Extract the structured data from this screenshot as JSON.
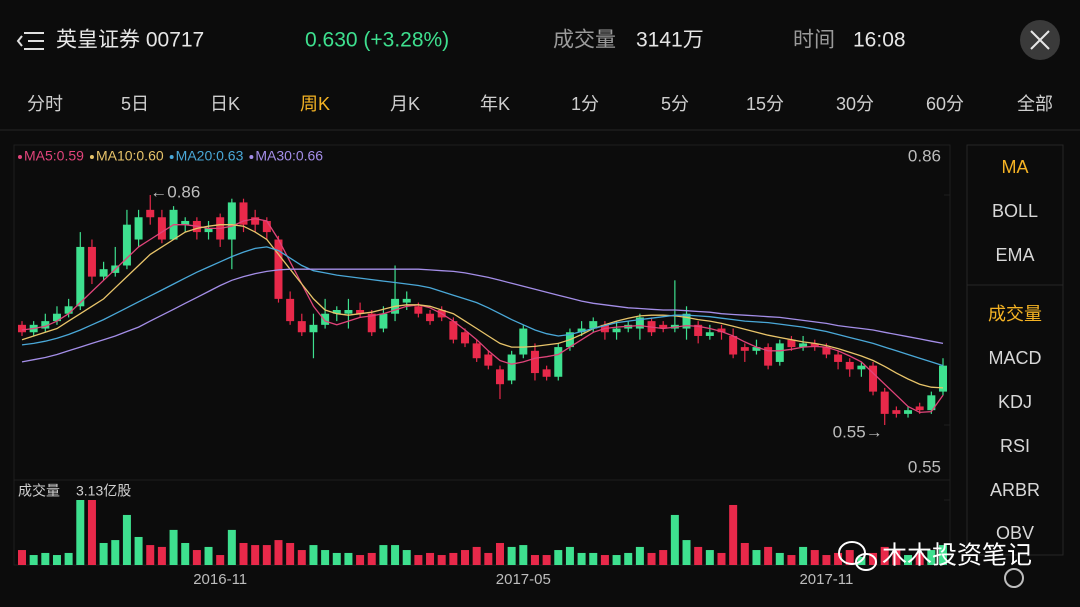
{
  "header": {
    "name": "英皇证券 00717",
    "price": "0.630 (+3.28%)",
    "volume_label": "成交量",
    "volume": "3141万",
    "time_label": "时间",
    "time": "16:08"
  },
  "tabs": [
    "分时",
    "5日",
    "日K",
    "周K",
    "月K",
    "年K",
    "1分",
    "5分",
    "15分",
    "30分",
    "60分",
    "全部"
  ],
  "active_tab": 3,
  "sidebar": [
    [
      "MA",
      "BOLL",
      "EMA"
    ],
    [
      "成交量",
      "MACD",
      "KDJ",
      "RSI",
      "ARBR",
      "OBV"
    ]
  ],
  "active_color": "#f5b324",
  "watermark": "木木投资笔记",
  "chart_data": {
    "type": "candlestick",
    "categories": [
      null,
      null,
      null,
      null,
      null,
      null,
      null,
      null,
      null,
      null,
      null,
      null,
      null,
      null,
      null,
      null,
      null,
      "2016-11",
      null,
      null,
      null,
      null,
      null,
      null,
      null,
      null,
      null,
      null,
      null,
      null,
      null,
      null,
      null,
      null,
      null,
      null,
      null,
      null,
      null,
      null,
      null,
      null,
      null,
      "2017-05",
      null,
      null,
      null,
      null,
      null,
      null,
      null,
      null,
      null,
      null,
      null,
      null,
      null,
      null,
      null,
      null,
      null,
      null,
      null,
      null,
      null,
      null,
      null,
      null,
      null,
      "2017-11",
      null,
      null,
      null,
      null,
      null,
      null,
      null,
      null,
      null,
      null
    ],
    "open": [
      0.685,
      0.675,
      0.68,
      0.69,
      0.7,
      0.71,
      0.79,
      0.75,
      0.755,
      0.765,
      0.8,
      0.84,
      0.83,
      0.8,
      0.82,
      0.825,
      0.81,
      0.83,
      0.8,
      0.85,
      0.83,
      0.825,
      0.8,
      0.72,
      0.69,
      0.675,
      0.685,
      0.7,
      0.7,
      0.705,
      0.7,
      0.68,
      0.7,
      0.715,
      0.71,
      0.7,
      0.705,
      0.69,
      0.675,
      0.66,
      0.645,
      0.625,
      0.61,
      0.645,
      0.65,
      0.625,
      0.615,
      0.655,
      0.675,
      0.68,
      0.685,
      0.675,
      0.68,
      0.68,
      0.69,
      0.685,
      0.68,
      0.68,
      0.685,
      0.67,
      0.68,
      0.67,
      0.655,
      0.65,
      0.655,
      0.635,
      0.665,
      0.655,
      0.66,
      0.655,
      0.645,
      0.635,
      0.625,
      0.63,
      0.595,
      0.57,
      0.565,
      0.575,
      0.57,
      0.595
    ],
    "high": [
      0.69,
      0.69,
      0.7,
      0.71,
      0.72,
      0.81,
      0.8,
      0.77,
      0.79,
      0.84,
      0.84,
      0.86,
      0.84,
      0.845,
      0.83,
      0.83,
      0.825,
      0.835,
      0.855,
      0.855,
      0.84,
      0.83,
      0.805,
      0.73,
      0.7,
      0.7,
      0.72,
      0.71,
      0.72,
      0.715,
      0.705,
      0.71,
      0.765,
      0.73,
      0.715,
      0.705,
      0.71,
      0.695,
      0.68,
      0.665,
      0.65,
      0.63,
      0.65,
      0.685,
      0.66,
      0.63,
      0.66,
      0.68,
      0.69,
      0.695,
      0.69,
      0.69,
      0.69,
      0.7,
      0.695,
      0.69,
      0.745,
      0.71,
      0.69,
      0.685,
      0.685,
      0.68,
      0.66,
      0.665,
      0.66,
      0.665,
      0.67,
      0.67,
      0.665,
      0.66,
      0.65,
      0.64,
      0.635,
      0.635,
      0.6,
      0.575,
      0.575,
      0.58,
      0.595,
      0.64
    ],
    "low": [
      0.67,
      0.67,
      0.675,
      0.685,
      0.695,
      0.705,
      0.74,
      0.745,
      0.75,
      0.76,
      0.79,
      0.82,
      0.795,
      0.8,
      0.81,
      0.8,
      0.8,
      0.79,
      0.76,
      0.81,
      0.81,
      0.8,
      0.715,
      0.685,
      0.67,
      0.64,
      0.68,
      0.69,
      0.68,
      0.695,
      0.67,
      0.675,
      0.69,
      0.705,
      0.695,
      0.685,
      0.69,
      0.66,
      0.655,
      0.635,
      0.625,
      0.585,
      0.605,
      0.64,
      0.61,
      0.61,
      0.61,
      0.65,
      0.67,
      0.675,
      0.665,
      0.665,
      0.675,
      0.665,
      0.67,
      0.675,
      0.675,
      0.665,
      0.66,
      0.665,
      0.665,
      0.64,
      0.635,
      0.645,
      0.625,
      0.63,
      0.65,
      0.65,
      0.65,
      0.64,
      0.625,
      0.615,
      0.615,
      0.59,
      0.55,
      0.56,
      0.56,
      0.565,
      0.565,
      0.59
    ],
    "close": [
      0.675,
      0.685,
      0.69,
      0.7,
      0.71,
      0.79,
      0.75,
      0.76,
      0.765,
      0.82,
      0.83,
      0.83,
      0.8,
      0.84,
      0.825,
      0.81,
      0.815,
      0.8,
      0.85,
      0.82,
      0.82,
      0.81,
      0.72,
      0.69,
      0.675,
      0.685,
      0.7,
      0.705,
      0.705,
      0.7,
      0.675,
      0.7,
      0.72,
      0.72,
      0.7,
      0.69,
      0.695,
      0.665,
      0.66,
      0.64,
      0.63,
      0.605,
      0.645,
      0.68,
      0.62,
      0.615,
      0.655,
      0.675,
      0.68,
      0.69,
      0.675,
      0.68,
      0.685,
      0.695,
      0.675,
      0.68,
      0.685,
      0.7,
      0.67,
      0.675,
      0.675,
      0.645,
      0.65,
      0.655,
      0.63,
      0.66,
      0.655,
      0.66,
      0.655,
      0.645,
      0.635,
      0.625,
      0.63,
      0.595,
      0.565,
      0.565,
      0.57,
      0.57,
      0.59,
      0.63
    ],
    "up_color": "#3ee08f",
    "down_color": "#e8294a",
    "ylim": [
      0.55,
      0.86
    ],
    "yticks": [
      0.55,
      0.86
    ],
    "annotations": [
      "←0.86",
      "0.55→"
    ],
    "ma_series": [
      {
        "name": "MA5:0.59",
        "color": "#e0447a",
        "values": [
          0.678,
          0.68,
          0.683,
          0.69,
          0.7,
          0.715,
          0.73,
          0.745,
          0.76,
          0.775,
          0.79,
          0.8,
          0.81,
          0.82,
          0.82,
          0.818,
          0.815,
          0.815,
          0.818,
          0.825,
          0.828,
          0.825,
          0.8,
          0.77,
          0.74,
          0.71,
          0.69,
          0.685,
          0.69,
          0.695,
          0.697,
          0.7,
          0.705,
          0.71,
          0.712,
          0.708,
          0.7,
          0.69,
          0.678,
          0.665,
          0.65,
          0.637,
          0.632,
          0.635,
          0.64,
          0.642,
          0.645,
          0.655,
          0.665,
          0.675,
          0.68,
          0.682,
          0.683,
          0.684,
          0.682,
          0.68,
          0.682,
          0.684,
          0.683,
          0.68,
          0.676,
          0.67,
          0.662,
          0.655,
          0.65,
          0.65,
          0.652,
          0.655,
          0.656,
          0.655,
          0.65,
          0.643,
          0.635,
          0.62,
          0.605,
          0.59,
          0.575,
          0.567,
          0.568,
          0.59
        ]
      },
      {
        "name": "MA10:0.60",
        "color": "#e8c46a",
        "values": [
          0.665,
          0.67,
          0.675,
          0.68,
          0.69,
          0.7,
          0.71,
          0.72,
          0.735,
          0.75,
          0.765,
          0.78,
          0.79,
          0.8,
          0.81,
          0.815,
          0.818,
          0.82,
          0.82,
          0.818,
          0.81,
          0.8,
          0.78,
          0.76,
          0.74,
          0.72,
          0.705,
          0.7,
          0.698,
          0.7,
          0.702,
          0.706,
          0.71,
          0.712,
          0.712,
          0.71,
          0.705,
          0.7,
          0.69,
          0.68,
          0.67,
          0.66,
          0.655,
          0.655,
          0.656,
          0.658,
          0.66,
          0.665,
          0.672,
          0.68,
          0.685,
          0.69,
          0.694,
          0.697,
          0.698,
          0.698,
          0.697,
          0.695,
          0.692,
          0.69,
          0.687,
          0.683,
          0.679,
          0.675,
          0.671,
          0.668,
          0.665,
          0.662,
          0.66,
          0.657,
          0.653,
          0.648,
          0.643,
          0.637,
          0.629,
          0.62,
          0.612,
          0.605,
          0.601,
          0.6
        ]
      },
      {
        "name": "MA20:0.63",
        "color": "#4aa8d8",
        "values": [
          0.658,
          0.66,
          0.663,
          0.667,
          0.672,
          0.678,
          0.685,
          0.692,
          0.7,
          0.708,
          0.716,
          0.724,
          0.732,
          0.74,
          0.748,
          0.756,
          0.763,
          0.77,
          0.777,
          0.783,
          0.788,
          0.79,
          0.785,
          0.775,
          0.765,
          0.758,
          0.755,
          0.752,
          0.75,
          0.748,
          0.746,
          0.744,
          0.742,
          0.74,
          0.738,
          0.735,
          0.73,
          0.725,
          0.72,
          0.715,
          0.708,
          0.7,
          0.692,
          0.685,
          0.678,
          0.673,
          0.67,
          0.672,
          0.676,
          0.68,
          0.684,
          0.688,
          0.69,
          0.692,
          0.694,
          0.696,
          0.698,
          0.698,
          0.697,
          0.696,
          0.694,
          0.692,
          0.69,
          0.689,
          0.688,
          0.686,
          0.684,
          0.682,
          0.679,
          0.676,
          0.672,
          0.668,
          0.664,
          0.66,
          0.655,
          0.65,
          0.645,
          0.64,
          0.635,
          0.63
        ]
      },
      {
        "name": "MA30:0.66",
        "color": "#a48ee8",
        "values": [
          0.635,
          0.638,
          0.641,
          0.645,
          0.65,
          0.655,
          0.66,
          0.665,
          0.67,
          0.676,
          0.682,
          0.69,
          0.698,
          0.706,
          0.714,
          0.722,
          0.73,
          0.738,
          0.745,
          0.75,
          0.754,
          0.757,
          0.759,
          0.76,
          0.76,
          0.76,
          0.76,
          0.76,
          0.76,
          0.76,
          0.76,
          0.76,
          0.76,
          0.76,
          0.76,
          0.759,
          0.758,
          0.757,
          0.755,
          0.752,
          0.749,
          0.745,
          0.741,
          0.737,
          0.733,
          0.729,
          0.725,
          0.721,
          0.717,
          0.714,
          0.712,
          0.71,
          0.708,
          0.707,
          0.706,
          0.705,
          0.705,
          0.704,
          0.703,
          0.702,
          0.7,
          0.699,
          0.698,
          0.697,
          0.696,
          0.695,
          0.693,
          0.691,
          0.689,
          0.687,
          0.684,
          0.682,
          0.68,
          0.678,
          0.675,
          0.672,
          0.669,
          0.666,
          0.663,
          0.66
        ]
      }
    ],
    "volume": {
      "title": "成交量",
      "max": {
        "value": 3.13,
        "label": "3.13亿股"
      },
      "values": [
        0.72,
        0.48,
        0.58,
        0.48,
        0.58,
        3.13,
        3.13,
        1.06,
        1.2,
        2.41,
        1.35,
        0.96,
        0.87,
        1.69,
        1.06,
        0.72,
        0.87,
        0.48,
        1.69,
        1.06,
        0.96,
        0.96,
        1.2,
        1.06,
        0.72,
        0.96,
        0.72,
        0.58,
        0.58,
        0.48,
        0.58,
        0.96,
        0.96,
        0.72,
        0.48,
        0.58,
        0.48,
        0.58,
        0.72,
        0.87,
        0.58,
        1.06,
        0.87,
        0.96,
        0.48,
        0.48,
        0.72,
        0.87,
        0.58,
        0.58,
        0.48,
        0.48,
        0.58,
        0.87,
        0.58,
        0.72,
        2.41,
        1.2,
        0.87,
        0.72,
        0.58,
        2.89,
        1.06,
        0.72,
        0.87,
        0.58,
        0.48,
        0.87,
        0.72,
        0.48,
        0.58,
        0.72,
        0.39,
        0.58,
        0.87,
        0.72,
        0.48,
        0.58,
        0.72,
        0.96
      ]
    }
  }
}
